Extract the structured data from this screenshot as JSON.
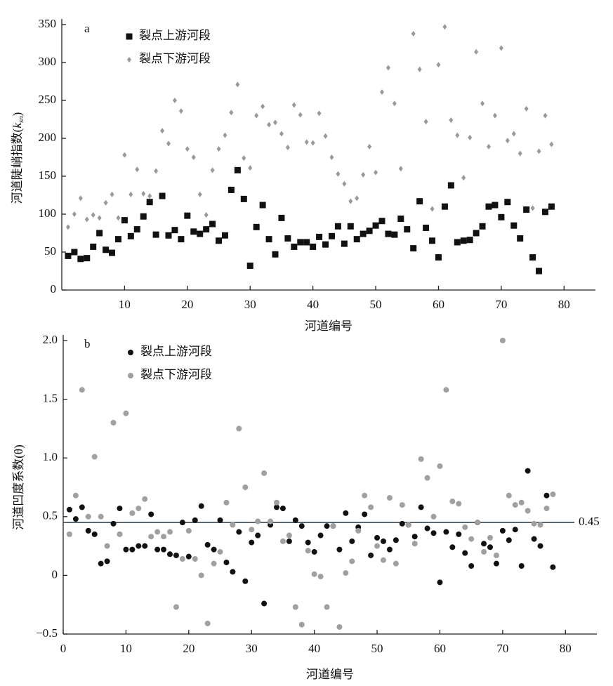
{
  "chart_data": [
    {
      "type": "scatter",
      "panel_label": "a",
      "ylabel": {
        "main": "河道陡峭指数(",
        "var": "k",
        "sub": "sn",
        "end": ")"
      },
      "xlabel": "河道编号",
      "x": [
        1,
        2,
        3,
        4,
        5,
        6,
        7,
        8,
        9,
        10,
        11,
        12,
        13,
        14,
        15,
        16,
        17,
        18,
        19,
        20,
        21,
        22,
        23,
        24,
        25,
        26,
        27,
        28,
        29,
        30,
        31,
        32,
        33,
        34,
        35,
        36,
        37,
        38,
        39,
        40,
        41,
        42,
        43,
        44,
        45,
        46,
        47,
        48,
        49,
        50,
        51,
        52,
        53,
        54,
        55,
        56,
        57,
        58,
        59,
        60,
        61,
        62,
        63,
        64,
        65,
        66,
        67,
        68,
        69,
        70,
        71,
        72,
        73,
        74,
        75,
        76,
        77,
        78
      ],
      "xlim": [
        0,
        85
      ],
      "xticks": [
        10,
        20,
        30,
        40,
        50,
        60,
        70,
        80
      ],
      "ylim": [
        0,
        350
      ],
      "yticks": [
        0,
        50,
        100,
        150,
        200,
        250,
        300,
        350
      ],
      "legend": "upper left",
      "series": [
        {
          "name": "裂点上游河段",
          "color": "#111111",
          "marker": "square",
          "values": [
            45,
            50,
            41,
            42,
            57,
            75,
            53,
            49,
            67,
            92,
            71,
            80,
            97,
            116,
            73,
            124,
            72,
            79,
            67,
            98,
            77,
            74,
            80,
            87,
            65,
            72,
            132,
            158,
            120,
            32,
            83,
            112,
            67,
            47,
            95,
            68,
            57,
            63,
            63,
            57,
            70,
            60,
            71,
            84,
            61,
            84,
            67,
            74,
            78,
            85,
            91,
            74,
            73,
            94,
            80,
            55,
            117,
            82,
            65,
            43,
            110,
            138,
            63,
            65,
            66,
            75,
            84,
            110,
            112,
            96,
            116,
            85,
            68,
            106,
            43,
            25,
            103,
            110
          ]
        },
        {
          "name": "裂点下游河段",
          "color": "#999999",
          "marker": "diamond",
          "values": [
            83,
            100,
            121,
            93,
            99,
            95,
            115,
            126,
            95,
            178,
            126,
            159,
            127,
            124,
            157,
            210,
            193,
            250,
            236,
            186,
            175,
            126,
            99,
            158,
            186,
            204,
            234,
            271,
            174,
            161,
            230,
            242,
            218,
            221,
            206,
            188,
            244,
            231,
            195,
            194,
            233,
            203,
            175,
            153,
            140,
            117,
            121,
            152,
            189,
            155,
            261,
            293,
            246,
            160,
            null,
            338,
            291,
            222,
            107,
            297,
            347,
            224,
            204,
            148,
            201,
            314,
            246,
            189,
            230,
            319,
            197,
            206,
            180,
            239,
            108,
            183,
            230,
            192
          ]
        }
      ]
    },
    {
      "type": "scatter",
      "panel_label": "b",
      "ylabel": "河道凹度系数(θ)",
      "xlabel": "河道编号",
      "x": [
        1,
        2,
        3,
        4,
        5,
        6,
        7,
        8,
        9,
        10,
        11,
        12,
        13,
        14,
        15,
        16,
        17,
        18,
        19,
        20,
        21,
        22,
        23,
        24,
        25,
        26,
        27,
        28,
        29,
        30,
        31,
        32,
        33,
        34,
        35,
        36,
        37,
        38,
        39,
        40,
        41,
        42,
        43,
        44,
        45,
        46,
        47,
        48,
        49,
        50,
        51,
        52,
        53,
        54,
        55,
        56,
        57,
        58,
        59,
        60,
        61,
        62,
        63,
        64,
        65,
        66,
        67,
        68,
        69,
        70,
        71,
        72,
        73,
        74,
        75,
        76,
        77,
        78
      ],
      "xlim": [
        0,
        85
      ],
      "xticks": [
        0,
        10,
        20,
        30,
        40,
        50,
        60,
        70,
        80
      ],
      "ylim": [
        -0.5,
        2.0
      ],
      "yticks": [
        {
          "value": -0.5,
          "label": "−0.5"
        },
        0,
        0.5,
        {
          "value": 1,
          "label": "1.0"
        },
        1.5,
        {
          "value": 2,
          "label": "2.0"
        }
      ],
      "reference_line": 0.45,
      "legend": "upper left",
      "series": [
        {
          "name": "裂点上游河段",
          "color": "#111111",
          "marker": "circle",
          "values": [
            0.56,
            0.48,
            0.58,
            0.38,
            0.35,
            0.1,
            0.12,
            0.44,
            0.57,
            0.22,
            0.22,
            0.25,
            0.25,
            0.52,
            0.22,
            0.22,
            0.18,
            0.17,
            0.45,
            0.16,
            0.47,
            0.59,
            0.26,
            0.22,
            0.47,
            0.11,
            0.03,
            0.37,
            -0.05,
            0.28,
            0.34,
            -0.24,
            0.43,
            0.58,
            0.57,
            0.29,
            0.47,
            0.42,
            0.28,
            0.2,
            0.34,
            0.42,
            0.42,
            0.22,
            0.53,
            0.29,
            0.41,
            0.52,
            0.17,
            0.32,
            0.29,
            0.22,
            0.3,
            0.44,
            0.43,
            0.33,
            0.58,
            0.4,
            0.36,
            -0.06,
            0.37,
            0.24,
            0.35,
            0.19,
            0.08,
            0.45,
            0.27,
            0.24,
            0.1,
            0.38,
            0.3,
            0.39,
            0.08,
            0.89,
            0.31,
            0.25,
            0.68,
            0.07
          ]
        },
        {
          "name": "裂点下游河段",
          "color": "#a0a0a0",
          "marker": "circle",
          "values": [
            0.35,
            0.68,
            1.58,
            0.5,
            1.01,
            0.5,
            0.25,
            1.3,
            0.35,
            1.38,
            0.53,
            0.57,
            0.65,
            0.33,
            0.37,
            0.33,
            0.37,
            -0.27,
            0.14,
            0.38,
            0.14,
            0.0,
            -0.41,
            0.1,
            0.2,
            0.62,
            0.43,
            1.25,
            0.75,
            0.39,
            0.46,
            0.87,
            0.46,
            0.62,
            0.29,
            0.34,
            -0.27,
            -0.42,
            0.21,
            0.01,
            -0.01,
            -0.27,
            0.42,
            -0.44,
            0.02,
            0.12,
            0.38,
            0.68,
            0.58,
            0.25,
            0.13,
            0.66,
            0.1,
            0.6,
            0.43,
            0.27,
            0.99,
            0.83,
            0.5,
            0.93,
            1.58,
            0.63,
            0.61,
            0.41,
            0.31,
            0.45,
            0.2,
            0.32,
            0.17,
            2.0,
            0.68,
            0.6,
            0.62,
            0.55,
            0.44,
            0.43,
            0.57,
            0.69
          ]
        }
      ]
    }
  ]
}
